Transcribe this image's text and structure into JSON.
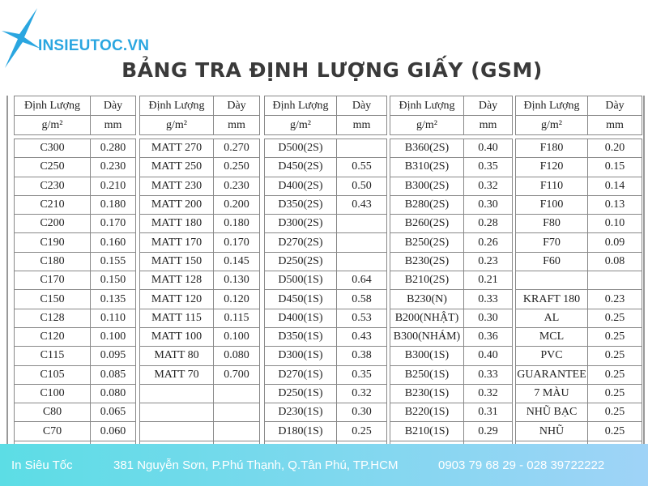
{
  "brand": {
    "logo_text": "INSIEUTOC.VN",
    "accent": "#2aa6e0"
  },
  "title": "BẢNG TRA ĐỊNH LƯỢNG GIẤY (GSM)",
  "header": {
    "col1": "Định Lượng",
    "col2": "Dày",
    "unit1": "g/m²",
    "unit2": "mm"
  },
  "groups": [
    {
      "rows": [
        [
          "C300",
          "0.280"
        ],
        [
          "C250",
          "0.230"
        ],
        [
          "C230",
          "0.210"
        ],
        [
          "C210",
          "0.180"
        ],
        [
          "C200",
          "0.170"
        ],
        [
          "C190",
          "0.160"
        ],
        [
          "C180",
          "0.155"
        ],
        [
          "C170",
          "0.150"
        ],
        [
          "C150",
          "0.135"
        ],
        [
          "C128",
          "0.110"
        ],
        [
          "C120",
          "0.100"
        ],
        [
          "C115",
          "0.095"
        ],
        [
          "C105",
          "0.085"
        ],
        [
          "C100",
          "0.080"
        ],
        [
          "C80",
          "0.065"
        ],
        [
          "C70",
          "0.060"
        ]
      ]
    },
    {
      "rows": [
        [
          "MATT 270",
          "0.270"
        ],
        [
          "MATT 250",
          "0.250"
        ],
        [
          "MATT 230",
          "0.230"
        ],
        [
          "MATT 200",
          "0.200"
        ],
        [
          "MATT 180",
          "0.180"
        ],
        [
          "MATT 170",
          "0.170"
        ],
        [
          "MATT 150",
          "0.145"
        ],
        [
          "MATT 128",
          "0.130"
        ],
        [
          "MATT 120",
          "0.120"
        ],
        [
          "MATT 115",
          "0.115"
        ],
        [
          "MATT 100",
          "0.100"
        ],
        [
          "MATT 80",
          "0.080"
        ],
        [
          "MATT 70",
          "0.700"
        ],
        [
          "",
          ""
        ],
        [
          "",
          ""
        ],
        [
          "",
          ""
        ]
      ]
    },
    {
      "rows": [
        [
          "D500(2S)",
          ""
        ],
        [
          "D450(2S)",
          "0.55"
        ],
        [
          "D400(2S)",
          "0.50"
        ],
        [
          "D350(2S)",
          "0.43"
        ],
        [
          "D300(2S)",
          ""
        ],
        [
          "D270(2S)",
          ""
        ],
        [
          "D250(2S)",
          ""
        ],
        [
          "D500(1S)",
          "0.64"
        ],
        [
          "D450(1S)",
          "0.58"
        ],
        [
          "D400(1S)",
          "0.53"
        ],
        [
          "D350(1S)",
          "0.43"
        ],
        [
          "D300(1S)",
          "0.38"
        ],
        [
          "D270(1S)",
          "0.35"
        ],
        [
          "D250(1S)",
          "0.32"
        ],
        [
          "D230(1S)",
          "0.30"
        ],
        [
          "D180(1S)",
          "0.25"
        ]
      ]
    },
    {
      "rows": [
        [
          "B360(2S)",
          "0.40"
        ],
        [
          "B310(2S)",
          "0.35"
        ],
        [
          "B300(2S)",
          "0.32"
        ],
        [
          "B280(2S)",
          "0.30"
        ],
        [
          "B260(2S)",
          "0.28"
        ],
        [
          "B250(2S)",
          "0.26"
        ],
        [
          "B230(2S)",
          "0.23"
        ],
        [
          "B210(2S)",
          "0.21"
        ],
        [
          "B230(N)",
          "0.33"
        ],
        [
          "B200(NHẬT)",
          "0.30"
        ],
        [
          "B300(NHÁM)",
          "0.36"
        ],
        [
          "B300(1S)",
          "0.40"
        ],
        [
          "B250(1S)",
          "0.33"
        ],
        [
          "B230(1S)",
          "0.32"
        ],
        [
          "B220(1S)",
          "0.31"
        ],
        [
          "B210(1S)",
          "0.29"
        ]
      ]
    },
    {
      "rows": [
        [
          "F180",
          "0.20"
        ],
        [
          "F120",
          "0.15"
        ],
        [
          "F110",
          "0.14"
        ],
        [
          "F100",
          "0.13"
        ],
        [
          "F80",
          "0.10"
        ],
        [
          "F70",
          "0.09"
        ],
        [
          "F60",
          "0.08"
        ],
        [
          "",
          ""
        ],
        [
          "KRAFT 180",
          "0.23"
        ],
        [
          "AL",
          "0.25"
        ],
        [
          "MCL",
          "0.25"
        ],
        [
          "PVC",
          "0.25"
        ],
        [
          "GUARANTEE",
          "0.25"
        ],
        [
          "7 MÀU",
          "0.25"
        ],
        [
          "NHŨ BẠC",
          "0.25"
        ],
        [
          "NHŨ",
          "0.25"
        ]
      ]
    }
  ],
  "footer": {
    "name": "In Siêu Tốc",
    "address": "381 Nguyễn Sơn, P.Phú Thạnh, Q.Tân Phú, TP.HCM",
    "phone": "0903 79 68 29 - 028 39722222"
  }
}
